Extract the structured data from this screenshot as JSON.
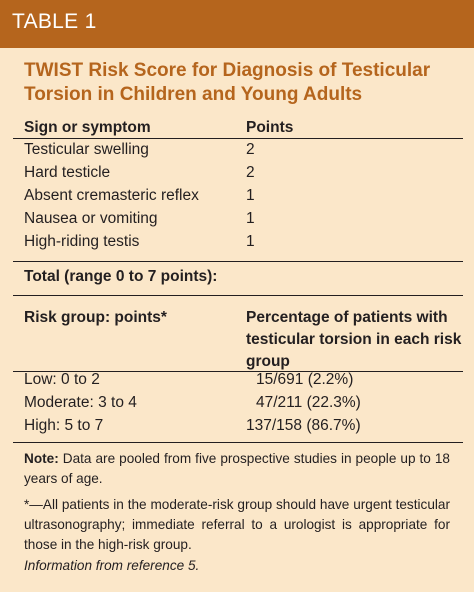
{
  "header": {
    "table_label": "TABLE 1"
  },
  "caption": "TWIST Risk Score for Diagnosis of Testicular Torsion in Children and Young Adults",
  "score_table": {
    "col_headers": [
      "Sign or symptom",
      "Points"
    ],
    "rows": [
      {
        "sign": "Testicular swelling",
        "points": "2"
      },
      {
        "sign": "Hard testicle",
        "points": "2"
      },
      {
        "sign": "Absent cremasteric reflex",
        "points": "1"
      },
      {
        "sign": "Nausea or vomiting",
        "points": "1"
      },
      {
        "sign": "High-riding testis",
        "points": "1"
      }
    ],
    "total": "Total (range 0 to 7 points):"
  },
  "risk_table": {
    "col_headers": [
      "Risk group: points*",
      "Percentage of patients with testicular torsion in each risk group"
    ],
    "rows": [
      {
        "group": "Low: 0 to 2",
        "pct": "15/691 (2.2%)"
      },
      {
        "group": "Moderate: 3 to 4",
        "pct": "47/211 (22.3%)"
      },
      {
        "group": "High: 5 to 7",
        "pct": "137/158 (86.7%)"
      }
    ]
  },
  "notes": {
    "note_label": "Note:",
    "note_text": " Data are pooled from five prospective studies in people up to 18 years of age.",
    "footnote": "*—All patients in the moderate-risk group should have urgent testicular ultrasonography; immediate referral to a urologist is appropriate for those in the high-risk group.",
    "source": "Information from reference 5."
  },
  "colors": {
    "header_bg": "#b5651d",
    "panel_bg": "#fbe7c9",
    "caption": "#b5651d"
  }
}
